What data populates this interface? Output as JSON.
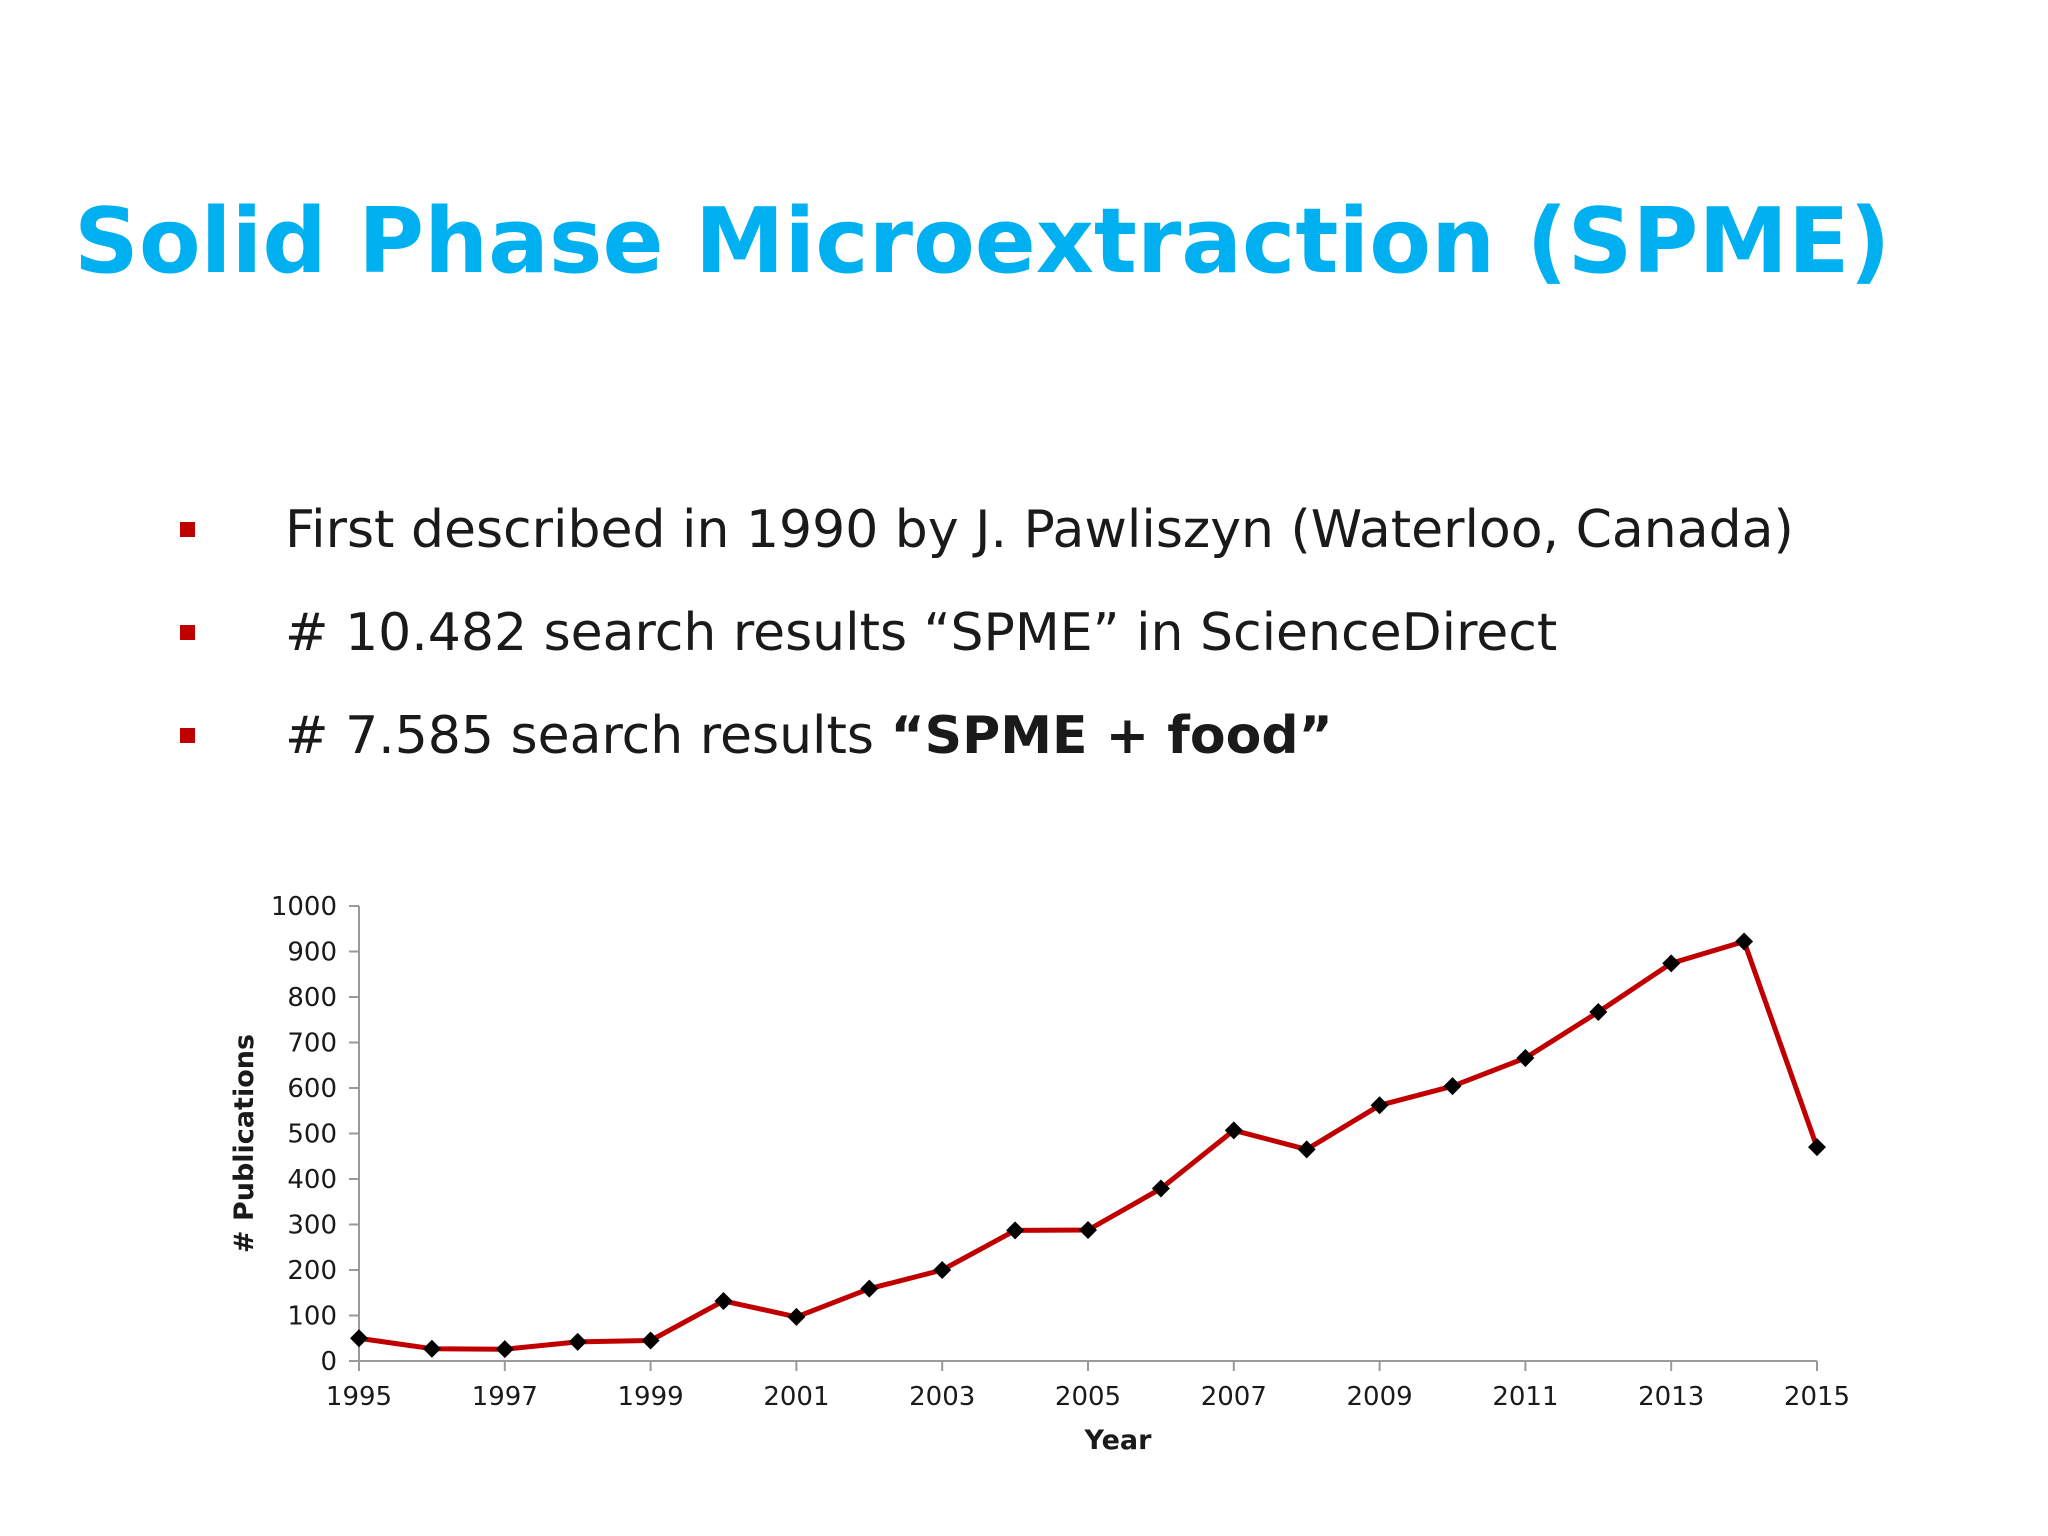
{
  "slide": {
    "title": "Solid Phase Microextraction (SPME)",
    "bullets": [
      {
        "text": "First described in 1990 by J. Pawliszyn (Waterloo, Canada)"
      },
      {
        "text": "# 10.482 search results “SPME” in ScienceDirect"
      },
      {
        "text": "# 7.585 search results ",
        "bold": "“SPME + food”"
      }
    ],
    "colors": {
      "title": "#00b0f0",
      "bullet_marker": "#c00000",
      "line": "#c00000",
      "marker": "#000000"
    }
  },
  "chart_data": {
    "type": "line",
    "xlabel": "Year",
    "ylabel": "# Publications",
    "xlim": [
      1995,
      2015
    ],
    "ylim": [
      0,
      1000
    ],
    "x_ticks": [
      1995,
      1997,
      1999,
      2001,
      2003,
      2005,
      2007,
      2009,
      2011,
      2013,
      2015
    ],
    "y_ticks": [
      0,
      100,
      200,
      300,
      400,
      500,
      600,
      700,
      800,
      900,
      1000
    ],
    "grid": false,
    "legend": false,
    "series": [
      {
        "x": [
          1995,
          1996,
          1997,
          1998,
          1999,
          2000,
          2001,
          2002,
          2003,
          2004,
          2005,
          2006,
          2007,
          2008,
          2009,
          2010,
          2011,
          2012,
          2013,
          2014,
          2015
        ],
        "values": [
          50,
          27,
          26,
          42,
          45,
          132,
          97,
          159,
          200,
          287,
          288,
          379,
          507,
          465,
          562,
          604,
          666,
          767,
          874,
          922,
          470
        ]
      }
    ]
  }
}
